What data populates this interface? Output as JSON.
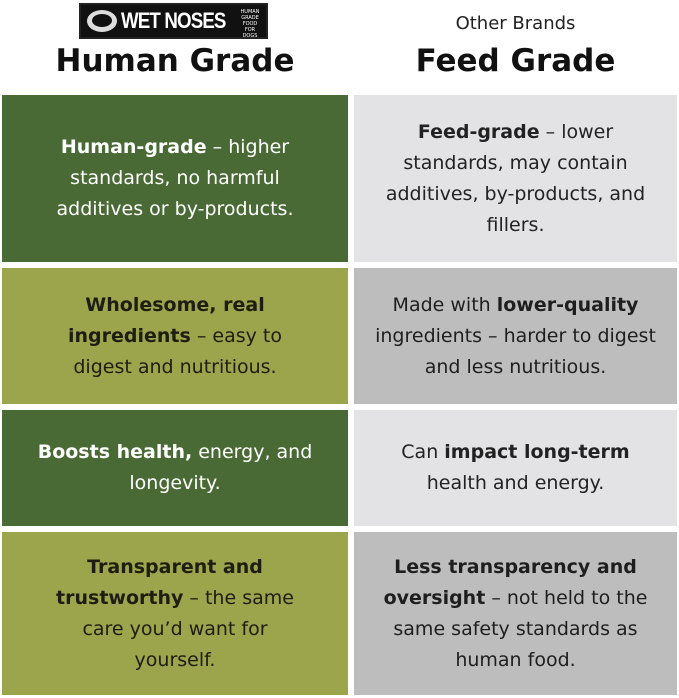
{
  "left_header": {
    "logo_text": "WET NOSES",
    "logo_tagline": "HUMAN GRADE FOOD FOR DOGS",
    "title": "Human Grade"
  },
  "right_header": {
    "subtitle": "Other Brands",
    "title": "Feed Grade"
  },
  "colors": {
    "dark_green": "#4a6a35",
    "olive": "#9ca54b",
    "light_gray": "#e3e3e6",
    "mid_gray": "#bdbdbd"
  },
  "rows": [
    {
      "left": [
        {
          "t": "Human-grade",
          "b": true
        },
        {
          "t": " – higher standards, no harmful additives or by-products.",
          "b": false
        }
      ],
      "right": [
        {
          "t": "Feed-grade",
          "b": true
        },
        {
          "t": " – lower standards, may contain additives, by-products, and fillers.",
          "b": false
        }
      ]
    },
    {
      "left": [
        {
          "t": "Wholesome, real ingredients",
          "b": true
        },
        {
          "t": " – easy to digest and nutritious.",
          "b": false
        }
      ],
      "right": [
        {
          "t": "Made with ",
          "b": false
        },
        {
          "t": "lower-quality",
          "b": true
        },
        {
          "t": " ingredients – harder to digest and less nutritious.",
          "b": false
        }
      ]
    },
    {
      "left": [
        {
          "t": "Boosts health,",
          "b": true
        },
        {
          "t": " energy, and longevity.",
          "b": false
        }
      ],
      "right": [
        {
          "t": "Can ",
          "b": false
        },
        {
          "t": "impact long-term",
          "b": true
        },
        {
          "t": " health and energy.",
          "b": false
        }
      ]
    },
    {
      "left": [
        {
          "t": "Transparent and trustworthy",
          "b": true
        },
        {
          "t": " – the same care you’d want for yourself.",
          "b": false
        }
      ],
      "right": [
        {
          "t": "Less transparency and oversight",
          "b": true
        },
        {
          "t": " – not held to the same safety standards as human food.",
          "b": false
        }
      ]
    }
  ]
}
